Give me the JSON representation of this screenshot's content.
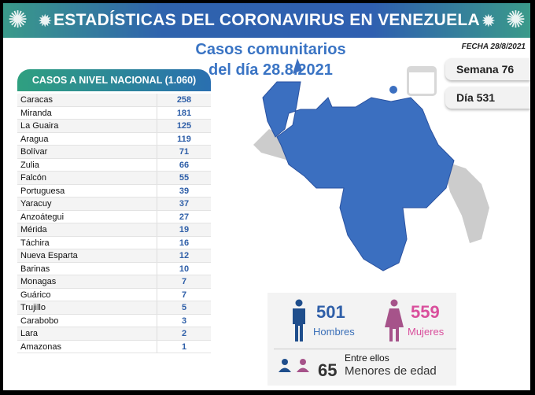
{
  "header": {
    "title": "ESTADÍSTICAS DEL CORONAVIRUS EN VENEZUELA"
  },
  "subtitle": {
    "line1": "Casos comunitarios",
    "line2": "del día 28.8.2021"
  },
  "fecha": "FECHA 28/8/2021",
  "semana": "Semana 76",
  "dia": "Día 531",
  "table": {
    "title": "CASOS A NIVEL NACIONAL (1.060)",
    "rows": [
      {
        "name": "Caracas",
        "value": "258"
      },
      {
        "name": "Miranda",
        "value": "181"
      },
      {
        "name": "La Guaira",
        "value": "125"
      },
      {
        "name": "Aragua",
        "value": "119"
      },
      {
        "name": "Bolívar",
        "value": "71"
      },
      {
        "name": "Zulia",
        "value": "66"
      },
      {
        "name": "Falcón",
        "value": "55"
      },
      {
        "name": "Portuguesa",
        "value": "39"
      },
      {
        "name": "Yaracuy",
        "value": "37"
      },
      {
        "name": "Anzoátegui",
        "value": "27"
      },
      {
        "name": "Mérida",
        "value": "19"
      },
      {
        "name": "Táchira",
        "value": "16"
      },
      {
        "name": "Nueva Esparta",
        "value": "12"
      },
      {
        "name": "Barinas",
        "value": "10"
      },
      {
        "name": "Monagas",
        "value": "7"
      },
      {
        "name": "Guárico",
        "value": "7"
      },
      {
        "name": "Trujillo",
        "value": "5"
      },
      {
        "name": "Carabobo",
        "value": "3"
      },
      {
        "name": "Lara",
        "value": "2"
      },
      {
        "name": "Amazonas",
        "value": "1"
      }
    ]
  },
  "stats": {
    "men": "501",
    "men_label": "Hombres",
    "women": "559",
    "women_label": "Mujeres",
    "minors_intro": "Entre ellos",
    "minors": "65",
    "minors_label": "Menores de edad"
  },
  "colors": {
    "blue": "#2f5fa8",
    "pink": "#d94f9c",
    "map": "#3b6fc0"
  }
}
